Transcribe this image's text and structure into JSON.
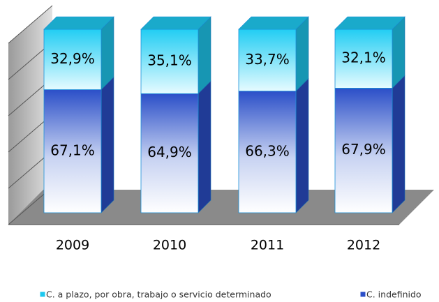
{
  "chart_data": {
    "type": "stacked_bar_3d",
    "categories": [
      "2009",
      "2010",
      "2011",
      "2012"
    ],
    "series": [
      {
        "name": "C. indefinido",
        "color": "#2b4fc8",
        "values": [
          67.1,
          64.9,
          66.3,
          67.9
        ],
        "value_labels": [
          "67,1%",
          "64,9%",
          "66,3%",
          "67,9%"
        ]
      },
      {
        "name": "C. a plazo, por obra, trabajo o servicio determinado",
        "color": "#1ec8ef",
        "values": [
          32.9,
          35.1,
          33.7,
          32.1
        ],
        "value_labels": [
          "32,9%",
          "35,1%",
          "33,7%",
          "32,1%"
        ]
      }
    ],
    "ylim": [
      0,
      100
    ],
    "yticks": [
      0,
      20,
      40,
      60,
      80,
      100
    ],
    "grid": true
  }
}
